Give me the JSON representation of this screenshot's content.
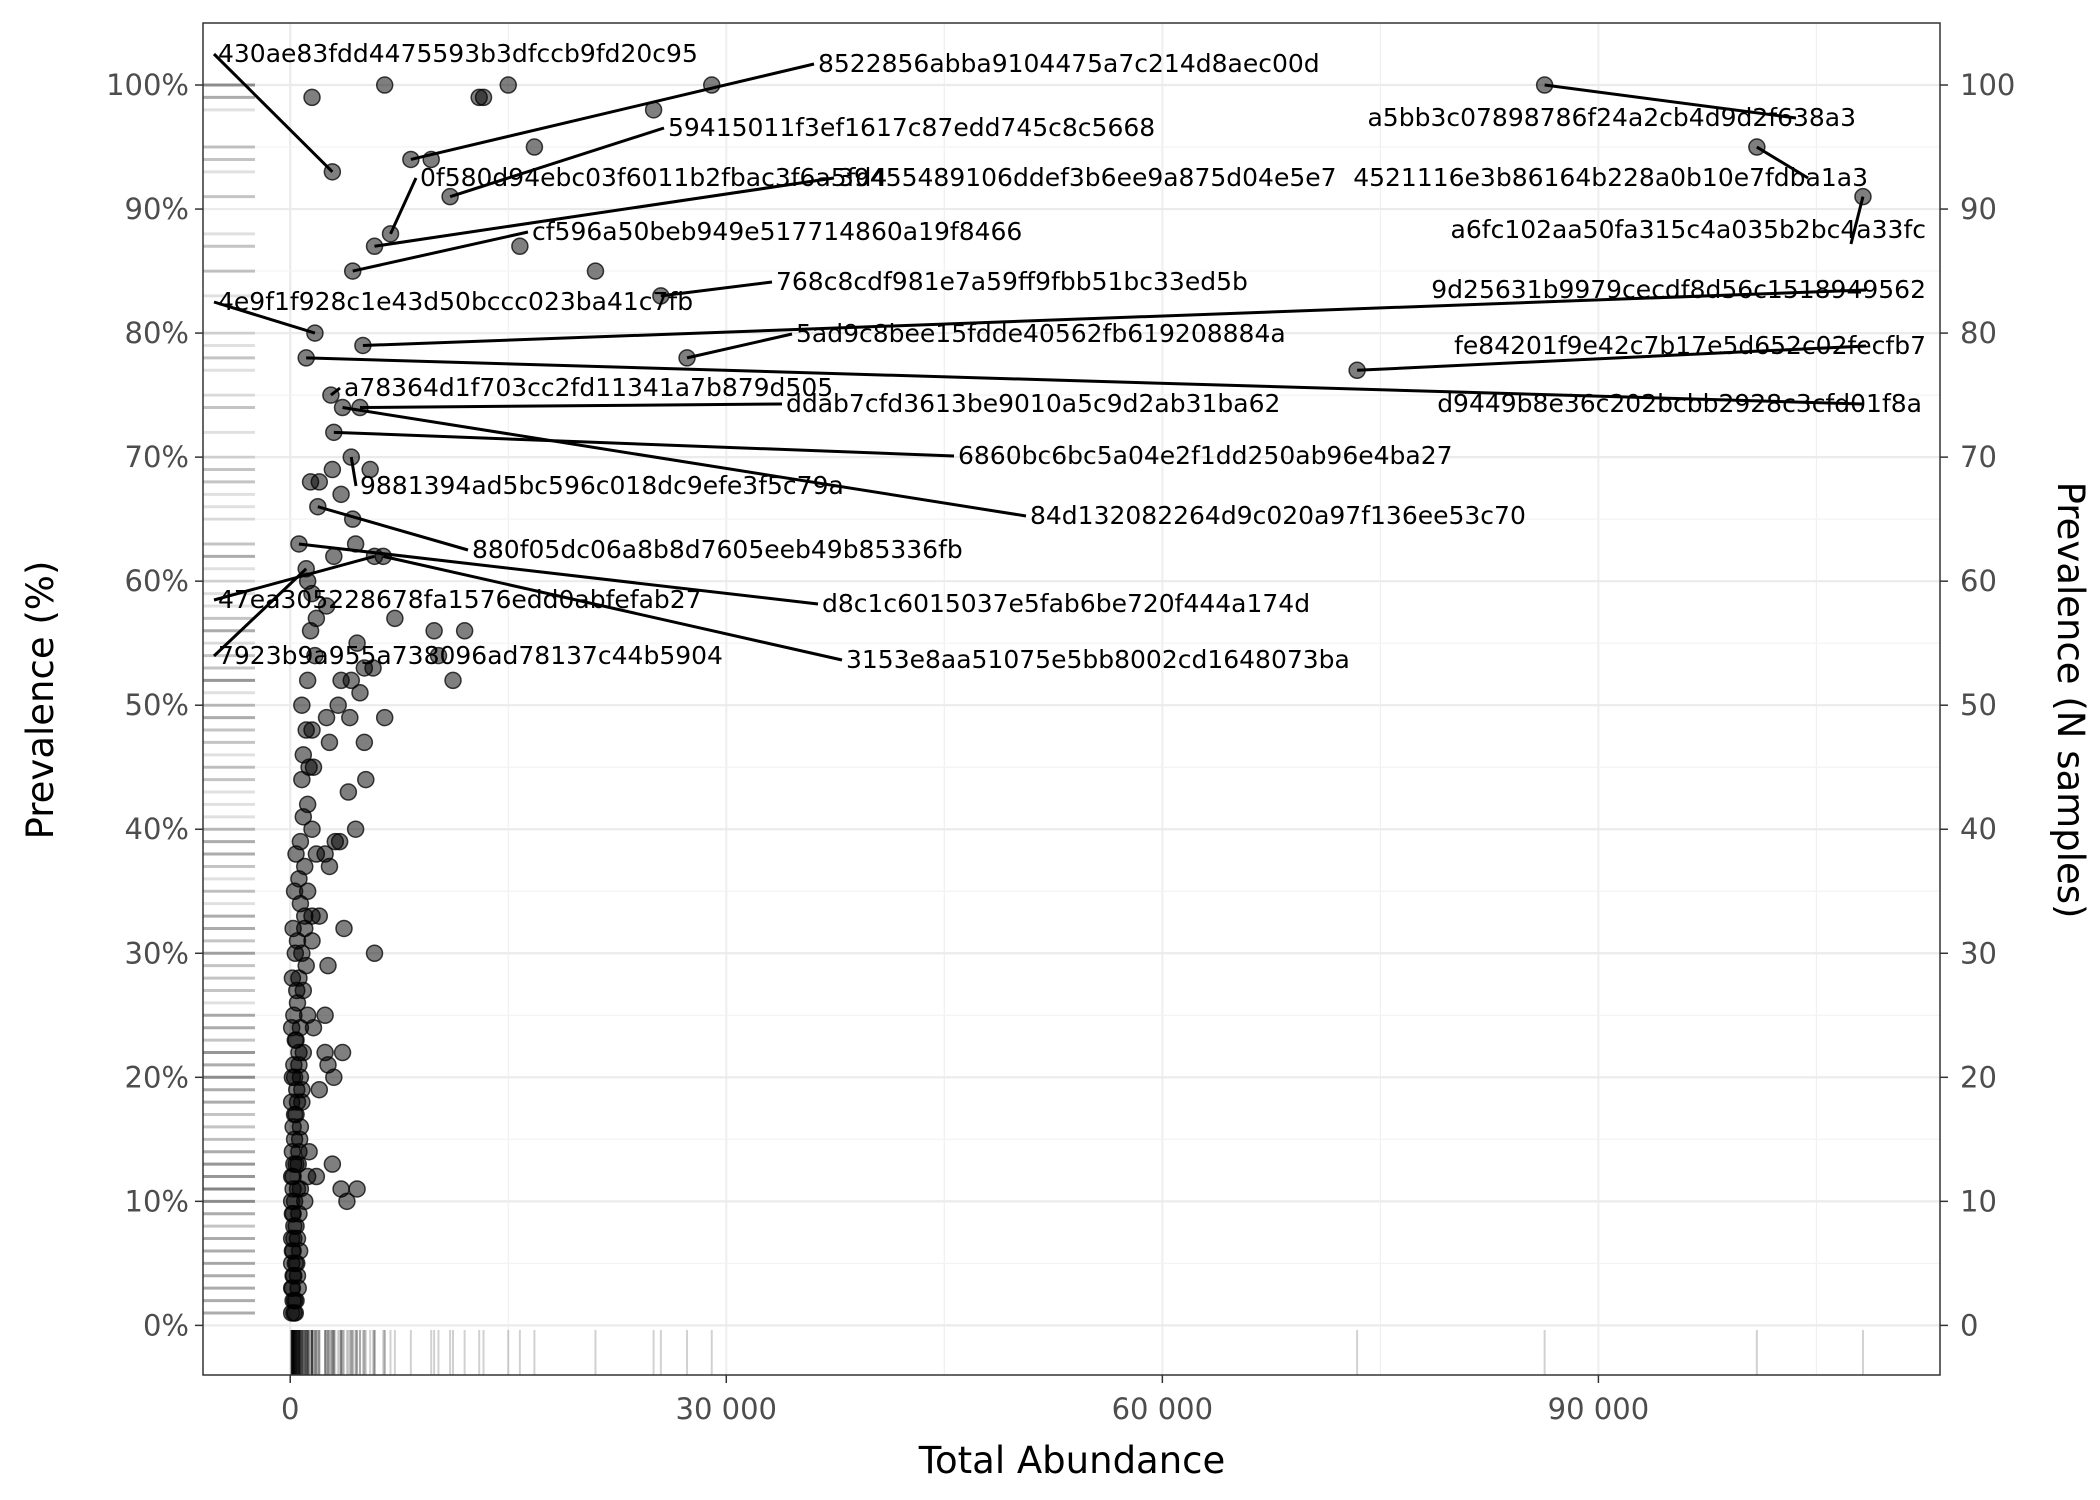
{
  "chart_data": {
    "type": "scatter",
    "title": "",
    "xlabel": "Total Abundance",
    "ylabel_left": "Prevalence (%)",
    "ylabel_right": "Prevalence (N samples)",
    "xlim": [
      -6000,
      113500
    ],
    "ylim_samples": [
      -4,
      105
    ],
    "x_ticks": [
      {
        "value": 0,
        "label": "0"
      },
      {
        "value": 30000,
        "label": "30 000"
      },
      {
        "value": 60000,
        "label": "60 000"
      },
      {
        "value": 90000,
        "label": "90 000"
      }
    ],
    "y_left_ticks": [
      {
        "value": 0,
        "label": "0%"
      },
      {
        "value": 10,
        "label": "10%"
      },
      {
        "value": 20,
        "label": "20%"
      },
      {
        "value": 30,
        "label": "30%"
      },
      {
        "value": 40,
        "label": "40%"
      },
      {
        "value": 50,
        "label": "50%"
      },
      {
        "value": 60,
        "label": "60%"
      },
      {
        "value": 70,
        "label": "70%"
      },
      {
        "value": 80,
        "label": "80%"
      },
      {
        "value": 90,
        "label": "90%"
      },
      {
        "value": 100,
        "label": "100%"
      }
    ],
    "y_right_ticks": [
      {
        "value": 0,
        "label": "0"
      },
      {
        "value": 10,
        "label": "10"
      },
      {
        "value": 20,
        "label": "20"
      },
      {
        "value": 30,
        "label": "30"
      },
      {
        "value": 40,
        "label": "40"
      },
      {
        "value": 50,
        "label": "50"
      },
      {
        "value": 60,
        "label": "60"
      },
      {
        "value": 70,
        "label": "70"
      },
      {
        "value": 80,
        "label": "80"
      },
      {
        "value": 90,
        "label": "90"
      },
      {
        "value": 100,
        "label": "100"
      }
    ],
    "grid": true,
    "rug": true,
    "point_color": "#000000",
    "labeled_points": [
      {
        "name": "430ae83fdd4475593b3dfccb9fd20c95",
        "x": 2900,
        "y": 93
      },
      {
        "name": "8522856abba9104475a7c214d8aec00d",
        "x": 8300,
        "y": 94
      },
      {
        "name": "59415011f3ef1617c87edd745c8c5668",
        "x": 11000,
        "y": 91
      },
      {
        "name": "0f580d94ebc03f6011b2fbac3f6a5fd4",
        "x": 6900,
        "y": 88
      },
      {
        "name": "39455489106ddef3b6ee9a875d04e5e7",
        "x": 5800,
        "y": 87
      },
      {
        "name": "cf596a50beb949e517714860a19f8466",
        "x": 4300,
        "y": 85
      },
      {
        "name": "4521116e3b86164b228a0b10e7fdba1a3",
        "x": 100900,
        "y": 95
      },
      {
        "name": "a5bb3c07898786f24a2cb4d9d2f638a3",
        "x": 86300,
        "y": 100
      },
      {
        "name": "a6fc102aa50fa315c4a035b2bc4a33fc",
        "x": 108200,
        "y": 91
      },
      {
        "name": "768c8cdf981e7a59ff9fbb51bc33ed5b",
        "x": 25500,
        "y": 83
      },
      {
        "name": "9d25631b9979cecdf8d56c1518949562",
        "x": 5000,
        "y": 79
      },
      {
        "name": "4e9f1f928c1e43d50bccc023ba41c7fb",
        "x": 1700,
        "y": 80
      },
      {
        "name": "5ad9c8bee15fdde40562fb619208884a",
        "x": 27300,
        "y": 78
      },
      {
        "name": "fe84201f9e42c7b17e5d652c02fecfb7",
        "x": 73400,
        "y": 77
      },
      {
        "name": "a78364d1f703cc2fd11341a7b879d505",
        "x": 2800,
        "y": 75
      },
      {
        "name": "ddab7cfd3613be9010a5c9d2ab31ba62",
        "x": 4800,
        "y": 74
      },
      {
        "name": "d9449b8e36c202bcbb2928c3cfd01f8a",
        "x": 1100,
        "y": 78
      },
      {
        "name": "6860bc6bc5a04e2f1dd250ab96e4ba27",
        "x": 3000,
        "y": 72
      },
      {
        "name": "9881394ad5bc596c018dc9efe3f5c79a",
        "x": 4200,
        "y": 70
      },
      {
        "name": "84d132082264d9c020a97f136ee53c70",
        "x": 3600,
        "y": 74
      },
      {
        "name": "880f05dc06a8b8d7605eeb49b85336fb",
        "x": 1900,
        "y": 66
      },
      {
        "name": "d8c1c6015037e5fab6be720f444a174d",
        "x": 600,
        "y": 63
      },
      {
        "name": "47ea305228678fa1576edd0abfefab27",
        "x": 5800,
        "y": 62
      },
      {
        "name": "7923b9a955a738096ad78137c44b5904",
        "x": 1100,
        "y": 61
      },
      {
        "name": "3153e8aa51075e5bb8002cd1648073ba",
        "x": 6400,
        "y": 62
      }
    ],
    "points": [
      [
        1500,
        99
      ],
      [
        6500,
        100
      ],
      [
        13000,
        99
      ],
      [
        13300,
        99
      ],
      [
        15000,
        100
      ],
      [
        25000,
        98
      ],
      [
        29000,
        100
      ],
      [
        16800,
        95
      ],
      [
        21000,
        85
      ],
      [
        15800,
        87
      ],
      [
        9700,
        94
      ],
      [
        2000,
        68
      ],
      [
        1400,
        68
      ],
      [
        2900,
        69
      ],
      [
        5500,
        69
      ],
      [
        3500,
        67
      ],
      [
        4300,
        65
      ],
      [
        4500,
        63
      ],
      [
        3000,
        62
      ],
      [
        7200,
        57
      ],
      [
        9900,
        56
      ],
      [
        12000,
        56
      ],
      [
        10200,
        54
      ],
      [
        11200,
        52
      ],
      [
        5100,
        53
      ],
      [
        5700,
        53
      ],
      [
        4600,
        55
      ],
      [
        3500,
        52
      ],
      [
        4200,
        52
      ],
      [
        4800,
        51
      ],
      [
        6500,
        49
      ],
      [
        2500,
        49
      ],
      [
        4100,
        49
      ],
      [
        3300,
        50
      ],
      [
        5100,
        47
      ],
      [
        2700,
        47
      ],
      [
        1500,
        48
      ],
      [
        5200,
        44
      ],
      [
        4000,
        43
      ],
      [
        4500,
        40
      ],
      [
        3100,
        39
      ],
      [
        3400,
        39
      ],
      [
        2400,
        38
      ],
      [
        2700,
        37
      ],
      [
        1800,
        38
      ],
      [
        3700,
        32
      ],
      [
        5800,
        30
      ],
      [
        2600,
        29
      ],
      [
        2000,
        33
      ],
      [
        1500,
        31
      ],
      [
        1000,
        32
      ],
      [
        1500,
        33
      ],
      [
        2400,
        25
      ],
      [
        1600,
        24
      ],
      [
        3600,
        22
      ],
      [
        2400,
        22
      ],
      [
        2600,
        21
      ],
      [
        3000,
        20
      ],
      [
        2000,
        19
      ],
      [
        2900,
        13
      ],
      [
        1800,
        12
      ],
      [
        3500,
        11
      ],
      [
        4600,
        11
      ],
      [
        3900,
        10
      ],
      [
        1000,
        10
      ],
      [
        1200,
        12
      ],
      [
        1300,
        14
      ],
      [
        1500,
        59
      ],
      [
        1200,
        60
      ],
      [
        2500,
        58
      ],
      [
        1800,
        57
      ],
      [
        1400,
        56
      ],
      [
        1700,
        54
      ],
      [
        1200,
        52
      ],
      [
        800,
        50
      ],
      [
        1100,
        48
      ],
      [
        900,
        46
      ],
      [
        1300,
        45
      ],
      [
        800,
        44
      ],
      [
        1600,
        45
      ],
      [
        1200,
        42
      ],
      [
        900,
        41
      ],
      [
        1500,
        40
      ],
      [
        700,
        39
      ],
      [
        1000,
        37
      ],
      [
        600,
        36
      ],
      [
        1200,
        35
      ],
      [
        700,
        34
      ],
      [
        1000,
        33
      ],
      [
        500,
        31
      ],
      [
        800,
        30
      ],
      [
        1100,
        29
      ],
      [
        600,
        28
      ],
      [
        900,
        27
      ],
      [
        500,
        26
      ],
      [
        1200,
        25
      ],
      [
        700,
        24
      ],
      [
        400,
        23
      ],
      [
        900,
        22
      ],
      [
        600,
        21
      ],
      [
        300,
        20
      ],
      [
        800,
        19
      ],
      [
        500,
        18
      ],
      [
        400,
        17
      ],
      [
        700,
        16
      ],
      [
        300,
        15
      ],
      [
        600,
        14
      ],
      [
        400,
        13
      ],
      [
        200,
        12
      ],
      [
        500,
        11
      ],
      [
        300,
        10
      ],
      [
        200,
        9
      ],
      [
        400,
        8
      ],
      [
        250,
        7
      ],
      [
        150,
        6
      ],
      [
        350,
        5
      ],
      [
        200,
        4
      ],
      [
        150,
        3
      ],
      [
        300,
        2
      ],
      [
        100,
        1
      ],
      [
        400,
        38
      ],
      [
        300,
        35
      ],
      [
        200,
        32
      ],
      [
        350,
        30
      ],
      [
        150,
        28
      ],
      [
        450,
        27
      ],
      [
        250,
        25
      ],
      [
        100,
        24
      ],
      [
        350,
        23
      ],
      [
        250,
        21
      ],
      [
        150,
        20
      ],
      [
        450,
        19
      ],
      [
        100,
        18
      ],
      [
        300,
        17
      ],
      [
        200,
        16
      ],
      [
        150,
        14
      ],
      [
        250,
        13
      ],
      [
        100,
        12
      ],
      [
        200,
        11
      ],
      [
        100,
        10
      ],
      [
        150,
        9
      ],
      [
        250,
        8
      ],
      [
        100,
        7
      ],
      [
        200,
        6
      ],
      [
        100,
        5
      ],
      [
        250,
        4
      ],
      [
        100,
        3
      ],
      [
        200,
        2
      ],
      [
        600,
        22
      ],
      [
        700,
        20
      ],
      [
        800,
        18
      ],
      [
        650,
        15
      ],
      [
        550,
        13
      ],
      [
        700,
        11
      ],
      [
        600,
        9
      ],
      [
        500,
        7
      ],
      [
        450,
        5
      ],
      [
        550,
        3
      ],
      [
        400,
        2
      ],
      [
        350,
        1
      ],
      [
        250,
        1
      ],
      [
        500,
        4
      ],
      [
        650,
        6
      ]
    ]
  }
}
